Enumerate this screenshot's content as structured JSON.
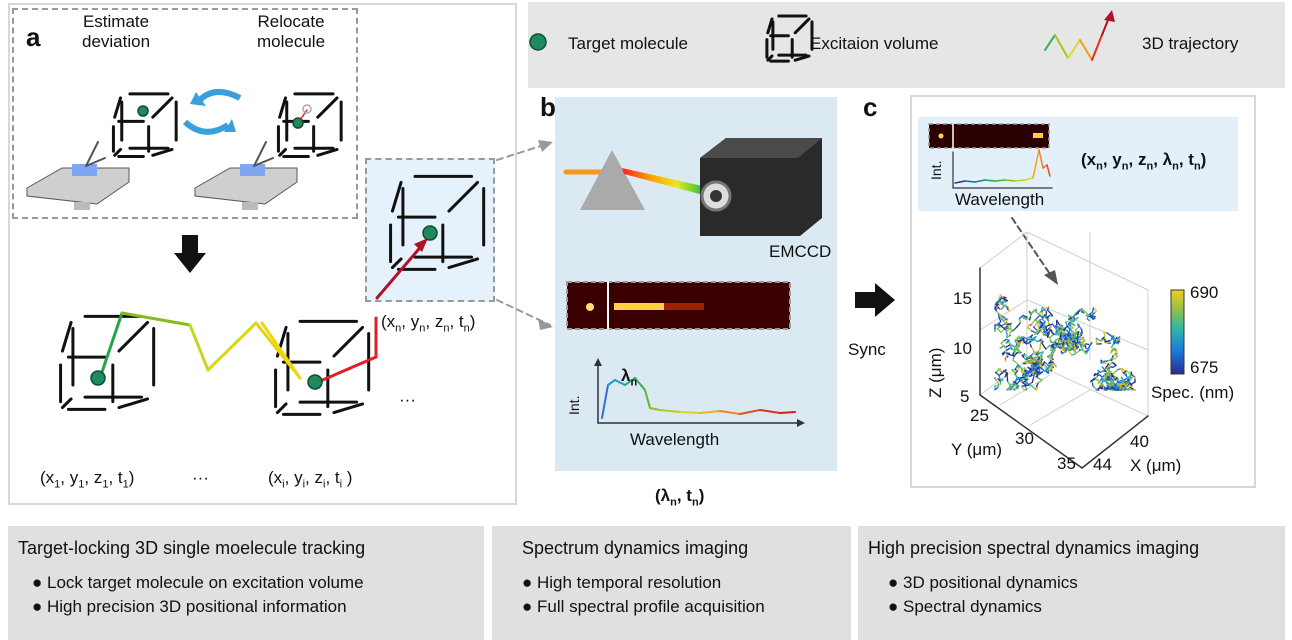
{
  "panel_a": {
    "letter": "a",
    "estimate_label": "Estimate\ndeviation",
    "relocate_label": "Relocate\nmolecule",
    "coords": [
      [
        [
          "(x",
          "1"
        ],
        [
          ", y",
          "1"
        ],
        [
          ", z",
          "1"
        ],
        [
          ", t",
          "1"
        ],
        [
          ")",
          ""
        ]
      ],
      [
        [
          "(x",
          "i"
        ],
        [
          ", y",
          "i"
        ],
        [
          ", z",
          "i"
        ],
        [
          ", t",
          "i"
        ],
        [
          " )",
          ""
        ]
      ],
      [
        [
          "(x",
          "n"
        ],
        [
          ", y",
          "n"
        ],
        [
          ", z",
          "n"
        ],
        [
          ", t",
          "n"
        ],
        [
          ")",
          ""
        ]
      ]
    ],
    "ellipsis_1": "···",
    "ellipsis_2": "···"
  },
  "legend": {
    "target_molecule": "Target molecule",
    "excitation_volume": "Excitaion volume",
    "trajectory": "3D trajectory"
  },
  "panel_b": {
    "letter": "b",
    "camera_label": "EMCCD",
    "lambda_label": "λ",
    "lambda_sub": "n",
    "int_label": "Int.",
    "wavelength_label": "Wavelength",
    "output_coord": [
      [
        "(λ",
        "n"
      ],
      [
        ", t",
        "n"
      ],
      [
        ")",
        ""
      ]
    ]
  },
  "sync_label": "Sync",
  "panel_c": {
    "letter": "c",
    "int_label": "Int.",
    "wavelength_label": "Wavelength",
    "output_coord": [
      [
        "(x",
        "n"
      ],
      [
        ", y",
        "n"
      ],
      [
        ", z",
        "n"
      ],
      [
        ", λ",
        "n"
      ],
      [
        ", t",
        "n"
      ],
      [
        ")",
        ""
      ]
    ],
    "z_axis_label": "Z (μm)",
    "y_axis_label": "Y (μm)",
    "x_axis_label": "X (μm)",
    "z_ticks": [
      "15",
      "10",
      "5"
    ],
    "y_ticks": [
      "25",
      "30",
      "35"
    ],
    "x_ticks": [
      "40",
      "44"
    ],
    "colorbar": {
      "max": "690",
      "min": "675",
      "label": "Spec. (nm)",
      "colormap": "parula"
    }
  },
  "summary": [
    {
      "title": "Target-locking 3D single moelecule tracking",
      "items": [
        "● Lock target molecule on excitation volume",
        "● High precision 3D positional information"
      ]
    },
    {
      "title": "Spectrum dynamics imaging",
      "items": [
        "● High temporal resolution",
        "● Full spectral profile acquisition"
      ]
    },
    {
      "title": "High precision spectral dynamics imaging",
      "items": [
        "● 3D positional dynamics",
        "● Spectral dynamics"
      ]
    }
  ],
  "colors": {
    "molecule": "#1f8a5e",
    "panel_bg": "#dbe9f3",
    "summary_bg": "#e0e0e0",
    "legend_bg": "#e6e6e6",
    "cycle_arrow": "#3aa0dc",
    "relocate_arrow": "#b0102a"
  }
}
